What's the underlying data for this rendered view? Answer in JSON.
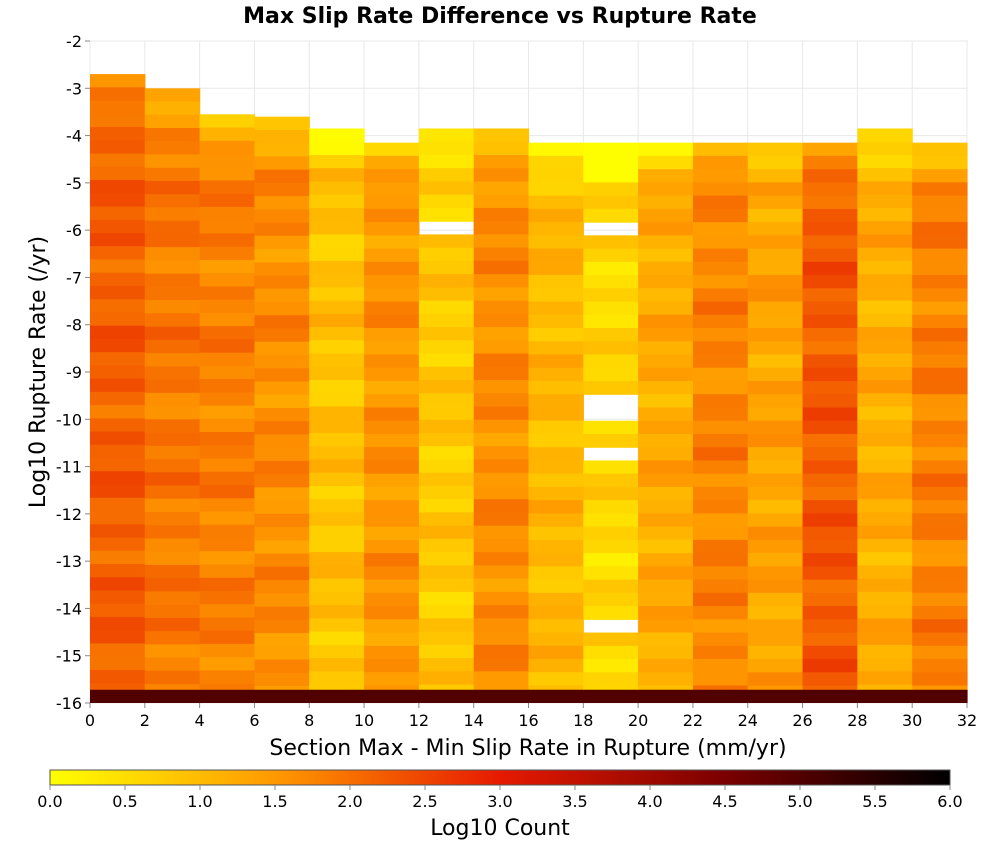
{
  "chart_data": {
    "type": "heatmap",
    "title": "Max Slip Rate Difference vs Rupture Rate",
    "xlabel": "Section Max - Min Slip Rate in Rupture (mm/yr)",
    "ylabel": "Log10 Rupture Rate (/yr)",
    "xlim": [
      0,
      32
    ],
    "ylim": [
      -16,
      -2
    ],
    "x_ticks": [
      "0",
      "2",
      "4",
      "6",
      "8",
      "10",
      "12",
      "14",
      "16",
      "18",
      "20",
      "22",
      "24",
      "26",
      "28",
      "30",
      "32"
    ],
    "y_ticks": [
      "-2",
      "-3",
      "-4",
      "-5",
      "-6",
      "-7",
      "-8",
      "-9",
      "-10",
      "-11",
      "-12",
      "-13",
      "-14",
      "-15",
      "-16"
    ],
    "cell_height": 0.28,
    "column_tops": [
      -2.7,
      -3.0,
      -3.55,
      -3.6,
      -3.85,
      -4.15,
      -3.85,
      -3.85,
      -4.15,
      -4.15,
      -4.15,
      -4.15,
      -4.15,
      -4.15,
      -3.85,
      -4.15
    ],
    "column_levels": [
      2.2,
      1.9,
      1.8,
      1.65,
      0.9,
      1.55,
      0.8,
      1.65,
      1.05,
      0.6,
      1.25,
      1.75,
      1.35,
      2.25,
      1.2,
      1.8
    ],
    "bottom_row_value": 5.0,
    "empty_cells": [
      {
        "x": 12,
        "y": -6.0
      },
      {
        "x": 18,
        "y": -6.0
      },
      {
        "x": 18,
        "y": -9.75
      },
      {
        "x": 18,
        "y": -10.6
      },
      {
        "x": 18,
        "y": -14.5
      }
    ],
    "colorbar": {
      "label": "Log10 Count",
      "min": 0.0,
      "max": 6.0,
      "ticks": [
        "0.0",
        "0.5",
        "1.0",
        "1.5",
        "2.0",
        "2.5",
        "3.0",
        "3.5",
        "4.0",
        "4.5",
        "5.0",
        "5.5",
        "6.0"
      ],
      "colors": [
        "#ffff00",
        "#ff9900",
        "#e61a00",
        "#7a0000",
        "#000000"
      ]
    },
    "grid": true
  }
}
